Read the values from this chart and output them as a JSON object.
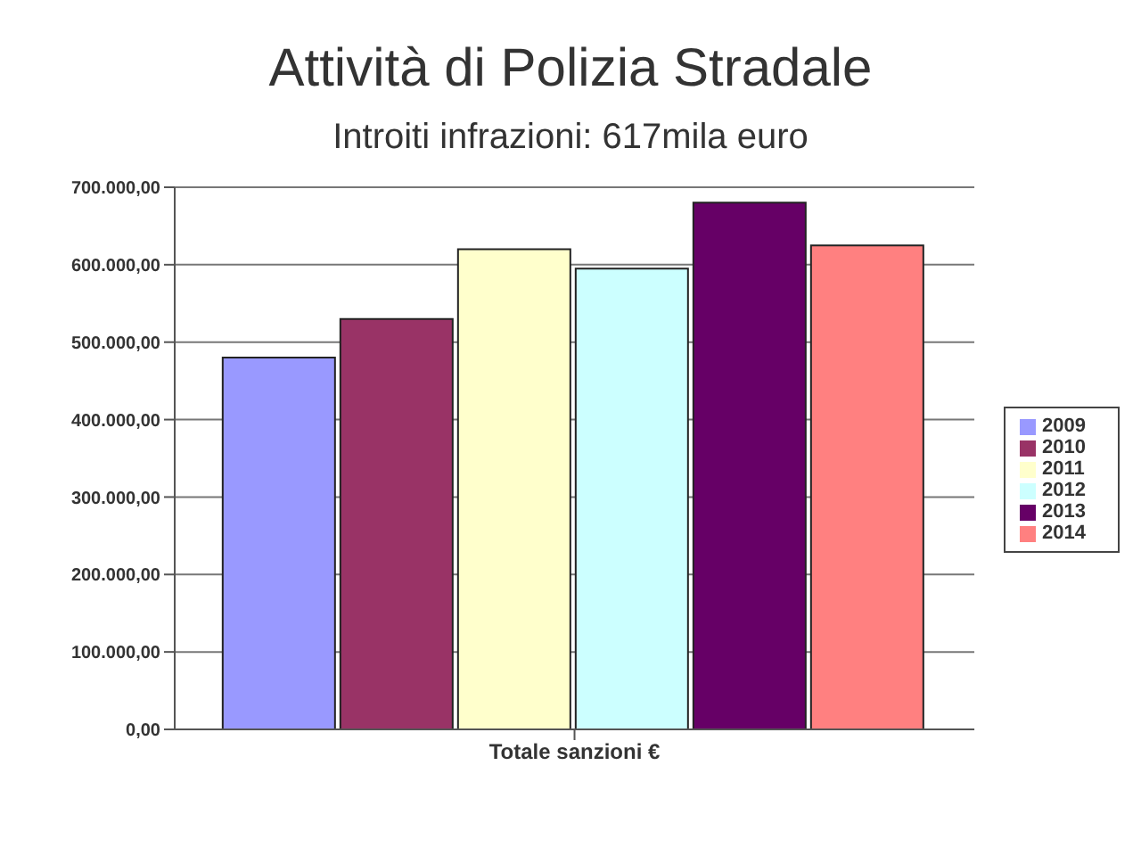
{
  "chart_data": {
    "type": "bar",
    "title": "Attività di Polizia Stradale",
    "subtitle": "Introiti infrazioni: 617mila euro",
    "categories": [
      "Totale sanzioni €"
    ],
    "series": [
      {
        "name": "2009",
        "color": "#9999ff",
        "values": [
          480000
        ]
      },
      {
        "name": "2010",
        "color": "#993366",
        "values": [
          530000
        ]
      },
      {
        "name": "2011",
        "color": "#ffffcc",
        "values": [
          620000
        ]
      },
      {
        "name": "2012",
        "color": "#ccffff",
        "values": [
          595000
        ]
      },
      {
        "name": "2013",
        "color": "#660066",
        "values": [
          680000
        ]
      },
      {
        "name": "2014",
        "color": "#ff8080",
        "values": [
          625000
        ]
      }
    ],
    "ylim": [
      0,
      700000
    ],
    "yticks": [
      {
        "value": 0,
        "label": "0,00"
      },
      {
        "value": 100000,
        "label": "100.000,00"
      },
      {
        "value": 200000,
        "label": "200.000,00"
      },
      {
        "value": 300000,
        "label": "300.000,00"
      },
      {
        "value": 400000,
        "label": "400.000,00"
      },
      {
        "value": 500000,
        "label": "500.000,00"
      },
      {
        "value": 600000,
        "label": "600.000,00"
      },
      {
        "value": 700000,
        "label": "700.000,00"
      }
    ],
    "grid": "y",
    "legend": "right"
  }
}
